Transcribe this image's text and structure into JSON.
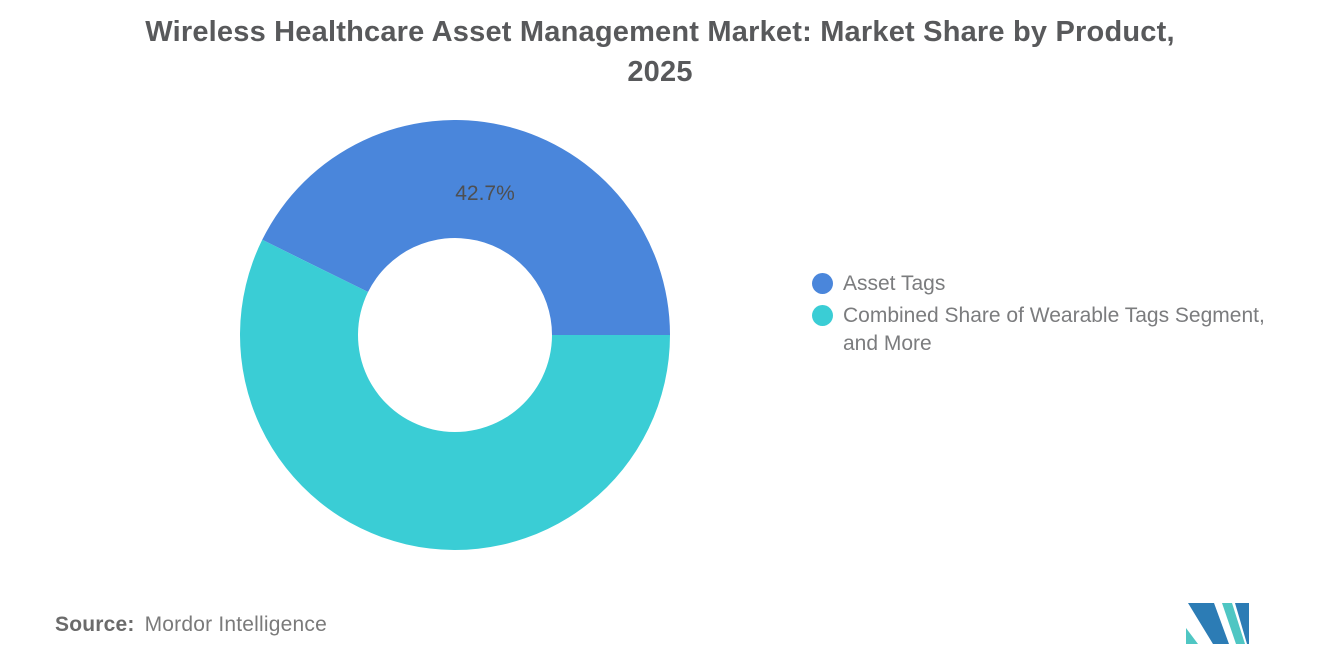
{
  "title": {
    "line1": "Wireless Healthcare Asset Management Market: Market Share by Product,",
    "line2": "2025"
  },
  "chart_data": {
    "type": "pie",
    "subtype": "donut",
    "title": "Wireless Healthcare Asset Management Market: Market Share by Product, 2025",
    "categories": [
      "Asset Tags",
      "Combined Share of Wearable Tags Segment, and More"
    ],
    "values": [
      42.7,
      57.3
    ],
    "colors": [
      "#4a86db",
      "#3acdd5"
    ],
    "data_label": "42.7%",
    "start_angle_deg": 0,
    "direction": "counterclockwise",
    "inner_radius_ratio": 0.45,
    "legend_position": "right"
  },
  "legend": {
    "items": [
      {
        "label": "Asset Tags",
        "color": "#4a86db"
      },
      {
        "label": "Combined Share of Wearable Tags Segment, and More",
        "color": "#3acdd5"
      }
    ]
  },
  "source": {
    "label": "Source:",
    "value": "Mordor Intelligence"
  },
  "logo": {
    "name": "Mordor Intelligence logo",
    "colors": {
      "blue": "#2c7cb5",
      "teal": "#4fc6c3"
    }
  }
}
